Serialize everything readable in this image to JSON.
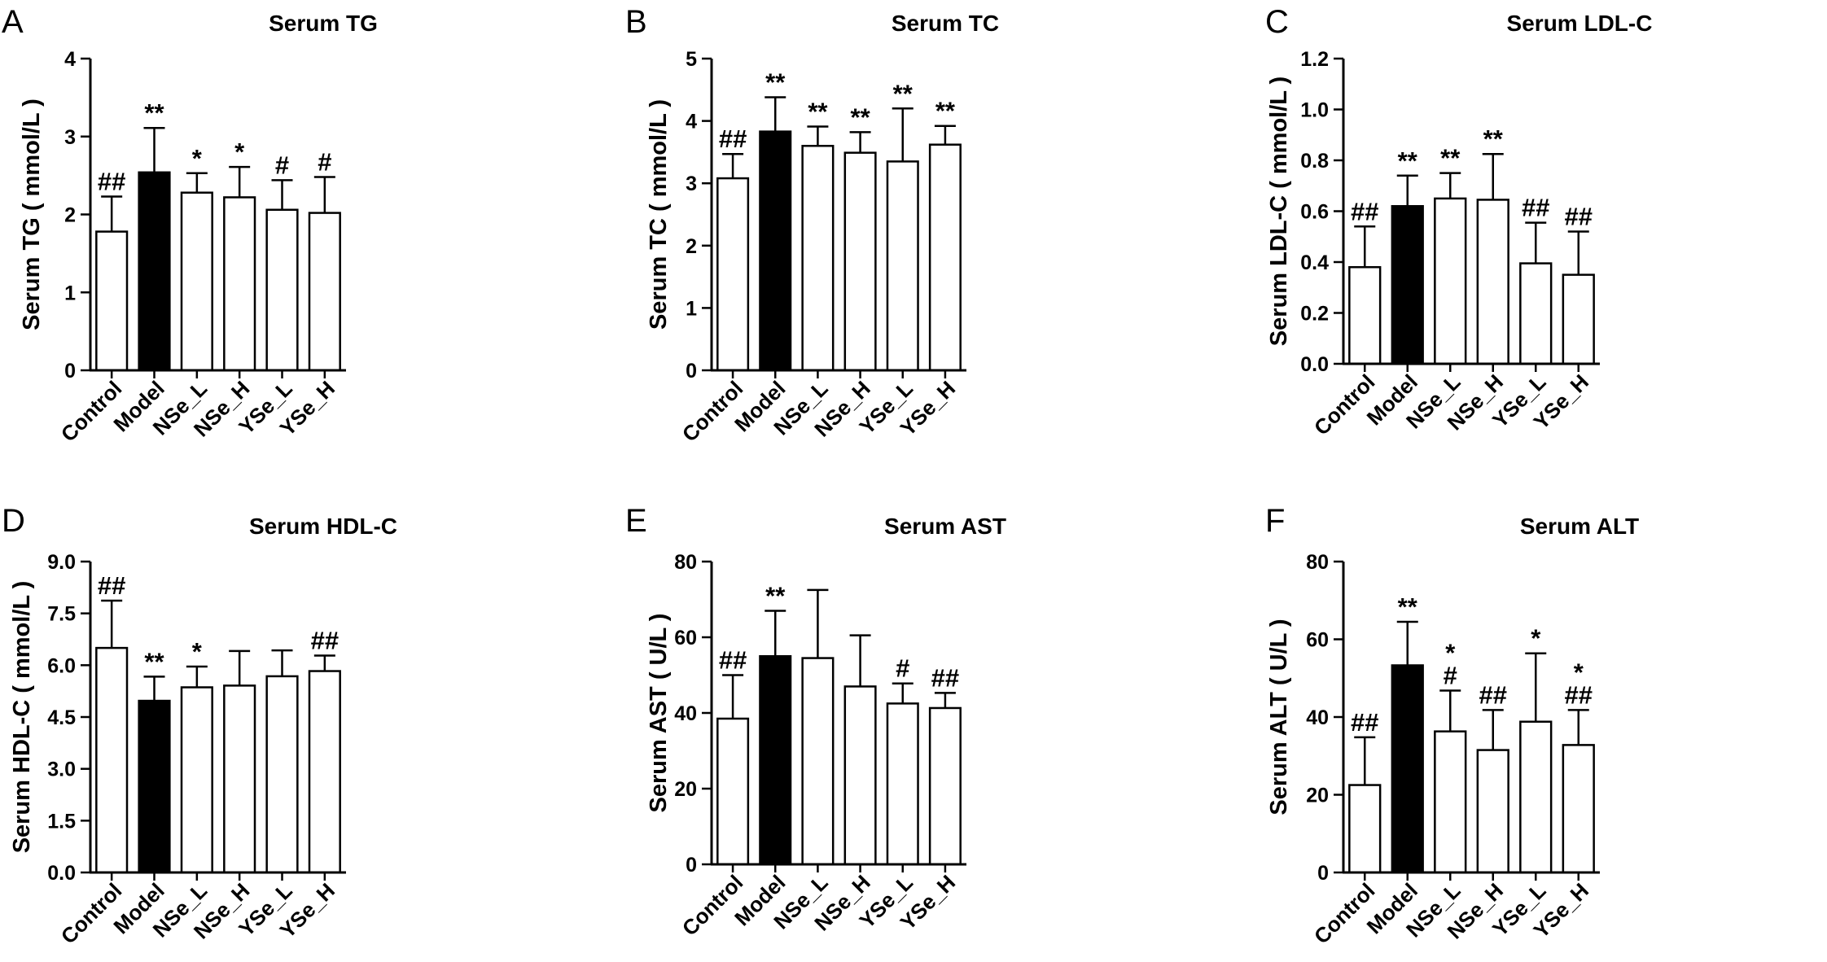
{
  "figure": {
    "groups": [
      "Control",
      "Model",
      "NSe_L",
      "NSe_H",
      "YSe_L",
      "YSe_H"
    ],
    "colors": {
      "control_fill": "#ffffff",
      "model_fill": "#000000",
      "axis": "#000000"
    }
  },
  "chart_data": [
    {
      "type": "bar",
      "panel_label": "A",
      "title": "Serum TG",
      "ylabel": "Serum TG ( mmol/L )",
      "xlabel": "",
      "categories": [
        "Control",
        "Model",
        "NSe_L",
        "NSe_H",
        "YSe_L",
        "YSe_H"
      ],
      "values": [
        1.78,
        2.54,
        2.28,
        2.22,
        2.06,
        2.02
      ],
      "errors": [
        0.45,
        0.57,
        0.25,
        0.39,
        0.38,
        0.46
      ],
      "significance": [
        [
          "##"
        ],
        [
          "**"
        ],
        [
          "*"
        ],
        [
          "*"
        ],
        [
          "#"
        ],
        [
          "#"
        ]
      ],
      "ylim": [
        0,
        4
      ],
      "ticks": [
        "0",
        "1",
        "2",
        "3",
        "4"
      ]
    },
    {
      "type": "bar",
      "panel_label": "B",
      "title": "Serum TC",
      "ylabel": "Serum TC ( mmol/L )",
      "xlabel": "",
      "categories": [
        "Control",
        "Model",
        "NSe_L",
        "NSe_H",
        "YSe_L",
        "YSe_H"
      ],
      "values": [
        3.08,
        3.83,
        3.6,
        3.49,
        3.35,
        3.62
      ],
      "errors": [
        0.39,
        0.55,
        0.31,
        0.33,
        0.85,
        0.3
      ],
      "significance": [
        [
          "##"
        ],
        [
          "**"
        ],
        [
          "**"
        ],
        [
          "**"
        ],
        [
          "**"
        ],
        [
          "**"
        ]
      ],
      "ylim": [
        0,
        5
      ],
      "ticks": [
        "0",
        "1",
        "2",
        "3",
        "4",
        "5"
      ]
    },
    {
      "type": "bar",
      "panel_label": "C",
      "title": "Serum LDL-C",
      "ylabel": "Serum LDL-C ( mmol/L )",
      "xlabel": "",
      "categories": [
        "Control",
        "Model",
        "NSe_L",
        "NSe_H",
        "YSe_L",
        "YSe_H"
      ],
      "values": [
        0.38,
        0.62,
        0.65,
        0.645,
        0.395,
        0.35
      ],
      "errors": [
        0.16,
        0.12,
        0.1,
        0.18,
        0.16,
        0.17
      ],
      "significance": [
        [
          "##"
        ],
        [
          "**"
        ],
        [
          "**"
        ],
        [
          "**"
        ],
        [
          "##"
        ],
        [
          "##"
        ]
      ],
      "ylim": [
        0,
        1.2
      ],
      "ticks": [
        "0.0",
        "0.2",
        "0.4",
        "0.6",
        "0.8",
        "1.0",
        "1.2"
      ]
    },
    {
      "type": "bar",
      "panel_label": "D",
      "title": "Serum HDL-C",
      "ylabel": "Serum HDL-C ( mmol/L )",
      "xlabel": "",
      "categories": [
        "Control",
        "Model",
        "NSe_L",
        "NSe_H",
        "YSe_L",
        "YSe_H"
      ],
      "values": [
        6.5,
        4.97,
        5.36,
        5.41,
        5.68,
        5.83
      ],
      "errors": [
        1.37,
        0.7,
        0.6,
        1.0,
        0.75,
        0.45
      ],
      "significance": [
        [
          "##"
        ],
        [
          "**"
        ],
        [
          "*"
        ],
        [],
        [],
        [
          "##"
        ]
      ],
      "ylim": [
        0,
        9.0
      ],
      "ticks": [
        "0.0",
        "1.5",
        "3.0",
        "4.5",
        "6.0",
        "7.5",
        "9.0"
      ]
    },
    {
      "type": "bar",
      "panel_label": "E",
      "title": "Serum AST",
      "ylabel": "Serum AST ( U/L )",
      "xlabel": "",
      "categories": [
        "Control",
        "Model",
        "NSe_L",
        "NSe_H",
        "YSe_L",
        "YSe_H"
      ],
      "values": [
        38.5,
        55.0,
        54.5,
        47.0,
        42.5,
        41.3
      ],
      "errors": [
        11.5,
        12.0,
        18.0,
        13.5,
        5.3,
        4.0
      ],
      "significance": [
        [
          "##"
        ],
        [
          "**"
        ],
        [],
        [],
        [
          "#"
        ],
        [
          "##"
        ]
      ],
      "ylim": [
        0,
        80
      ],
      "ticks": [
        "0",
        "20",
        "40",
        "60",
        "80"
      ]
    },
    {
      "type": "bar",
      "panel_label": "F",
      "title": "Serum ALT",
      "ylabel": "Serum ALT ( U/L )",
      "xlabel": "",
      "categories": [
        "Control",
        "Model",
        "NSe_L",
        "NSe_H",
        "YSe_L",
        "YSe_H"
      ],
      "values": [
        22.5,
        53.3,
        36.3,
        31.5,
        38.8,
        32.8
      ],
      "errors": [
        12.3,
        11.2,
        10.5,
        10.3,
        17.6,
        9.0
      ],
      "significance": [
        [
          "##"
        ],
        [
          "**"
        ],
        [
          "*",
          "#"
        ],
        [
          "##"
        ],
        [
          "*"
        ],
        [
          "*",
          "##"
        ]
      ],
      "ylim": [
        0,
        80
      ],
      "ticks": [
        "0",
        "20",
        "40",
        "60",
        "80"
      ]
    }
  ]
}
